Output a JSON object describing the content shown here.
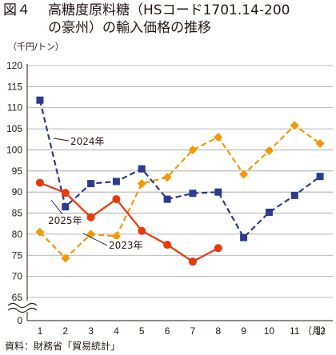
{
  "title": {
    "figure_number": "図４",
    "line1": "高糖度原料糖（HSコード1701.14-200",
    "line2": "の豪州）の輸入価格の推移"
  },
  "source_note": "資料：財務省「貿易統計」",
  "chart_data": {
    "type": "line",
    "title": "高糖度原料糖（HSコード1701.14-200の豪州）の輸入価格の推移",
    "ylabel": "（千円/トン）",
    "xlabel": "（月）",
    "categories": [
      "1",
      "2",
      "3",
      "4",
      "5",
      "6",
      "7",
      "8",
      "9",
      "10",
      "11",
      "12"
    ],
    "x_unit_label": "（月）",
    "ylim": [
      65,
      120
    ],
    "y_ticks": [
      "120",
      "115",
      "110",
      "105",
      "100",
      "95",
      "90",
      "85",
      "80",
      "75",
      "70",
      "65",
      "0"
    ],
    "axis_break": true,
    "grid": "horizontal",
    "series": [
      {
        "name": "2023年",
        "values": [
          80.5,
          74.3,
          80.0,
          79.5,
          92.0,
          93.5,
          100.0,
          103.0,
          94.2,
          99.8,
          105.8,
          101.5
        ],
        "color": "#f39800",
        "style": "dashed",
        "marker": "diamond"
      },
      {
        "name": "2024年",
        "values": [
          111.8,
          86.5,
          92.0,
          92.5,
          95.5,
          88.3,
          89.7,
          90.0,
          79.2,
          85.2,
          89.2,
          93.7
        ],
        "color": "#2e3a8c",
        "style": "dashed",
        "marker": "square"
      },
      {
        "name": "2025年",
        "values": [
          92.2,
          89.8,
          84.0,
          88.3,
          80.8,
          77.5,
          73.5,
          76.7,
          null,
          null,
          null,
          null
        ],
        "color": "#e8380d",
        "style": "solid",
        "marker": "circle"
      }
    ],
    "annotations": [
      {
        "text": "2024年",
        "series": "2024年"
      },
      {
        "text": "2025年",
        "series": "2025年"
      },
      {
        "text": "2023年",
        "series": "2023年"
      }
    ]
  }
}
